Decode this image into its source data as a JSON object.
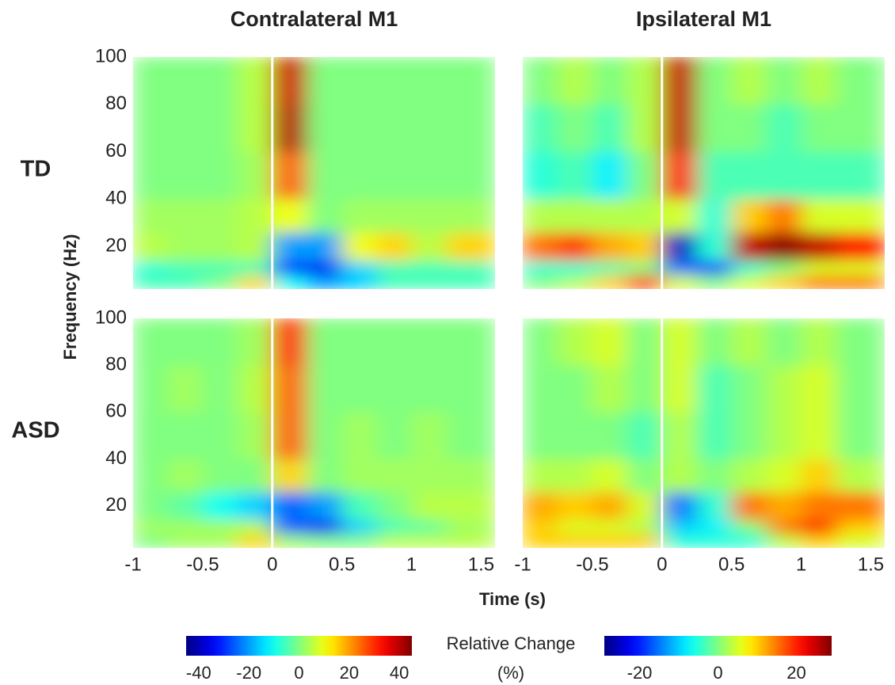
{
  "figure": {
    "xlabel": "Time (s)",
    "ylabel": "Frequency (Hz)",
    "colorbar_label": "Relative Change",
    "colorbar_unit": "(%)",
    "colormap": "jet",
    "colorbars": [
      {
        "clim": [
          -45,
          45
        ],
        "ticks": [
          -40,
          -20,
          0,
          20,
          40
        ]
      },
      {
        "clim": [
          -29,
          29
        ],
        "ticks": [
          -20,
          0,
          20
        ]
      }
    ]
  },
  "chart_data": [
    {
      "type": "heatmap",
      "title": "Contralateral M1",
      "row_label": "TD",
      "colorbar": 0,
      "xlim": [
        -1,
        1.6
      ],
      "ylim": [
        2,
        100
      ],
      "yticks": [
        20,
        40,
        60,
        80,
        100
      ],
      "event_x": 0,
      "x_edges": [
        -1,
        -0.75,
        -0.5,
        -0.25,
        0,
        0.25,
        0.5,
        0.75,
        1,
        1.25,
        1.6
      ],
      "y_edges": [
        2,
        8,
        14,
        26,
        40,
        60,
        80,
        100
      ],
      "values": [
        [
          -5,
          -5,
          0,
          15,
          -10,
          -20,
          -15,
          -5,
          -5,
          -5
        ],
        [
          -8,
          -5,
          -5,
          -5,
          -30,
          -35,
          -15,
          -5,
          -5,
          -5
        ],
        [
          5,
          3,
          3,
          5,
          -20,
          -20,
          10,
          15,
          5,
          15
        ],
        [
          3,
          3,
          3,
          5,
          10,
          0,
          3,
          3,
          3,
          3
        ],
        [
          0,
          0,
          0,
          3,
          25,
          0,
          0,
          0,
          0,
          0
        ],
        [
          0,
          0,
          0,
          5,
          40,
          0,
          0,
          0,
          0,
          0
        ],
        [
          0,
          0,
          0,
          5,
          38,
          0,
          0,
          0,
          0,
          0
        ]
      ]
    },
    {
      "type": "heatmap",
      "title": "Ipsilateral M1",
      "colorbar": 1,
      "xlim": [
        -1,
        1.6
      ],
      "ylim": [
        2,
        100
      ],
      "event_x": 0,
      "x_edges": [
        -1,
        -0.75,
        -0.5,
        -0.25,
        0,
        0.25,
        0.5,
        0.75,
        1,
        1.25,
        1.6
      ],
      "y_edges": [
        2,
        8,
        14,
        26,
        40,
        60,
        80,
        100
      ],
      "values": [
        [
          0,
          3,
          10,
          20,
          5,
          0,
          5,
          10,
          15,
          15
        ],
        [
          -5,
          -5,
          -3,
          0,
          -15,
          -20,
          -5,
          0,
          5,
          5
        ],
        [
          15,
          18,
          12,
          10,
          -25,
          -5,
          25,
          28,
          25,
          20
        ],
        [
          3,
          3,
          3,
          3,
          5,
          -5,
          10,
          15,
          5,
          5
        ],
        [
          -5,
          -3,
          -8,
          0,
          20,
          -3,
          -3,
          -3,
          -3,
          -3
        ],
        [
          -3,
          0,
          -3,
          3,
          25,
          0,
          0,
          -3,
          0,
          0
        ],
        [
          0,
          3,
          0,
          3,
          25,
          0,
          3,
          0,
          3,
          0
        ]
      ]
    },
    {
      "type": "heatmap",
      "row_label": "ASD",
      "colorbar": 0,
      "xlim": [
        -1,
        1.6
      ],
      "ylim": [
        2,
        100
      ],
      "xticks": [
        -1,
        -0.5,
        0,
        0.5,
        1,
        1.5
      ],
      "yticks": [
        20,
        40,
        60,
        80,
        100
      ],
      "event_x": 0,
      "x_edges": [
        -1,
        -0.75,
        -0.5,
        -0.25,
        0,
        0.25,
        0.5,
        0.75,
        1,
        1.25,
        1.6
      ],
      "y_edges": [
        2,
        8,
        14,
        26,
        40,
        60,
        80,
        100
      ],
      "values": [
        [
          0,
          3,
          3,
          15,
          3,
          0,
          0,
          5,
          5,
          5
        ],
        [
          3,
          3,
          3,
          5,
          -25,
          -35,
          -15,
          -5,
          -3,
          3
        ],
        [
          0,
          -3,
          -10,
          -15,
          -25,
          -20,
          -5,
          0,
          5,
          5
        ],
        [
          0,
          3,
          0,
          0,
          15,
          0,
          3,
          3,
          3,
          3
        ],
        [
          0,
          0,
          0,
          3,
          25,
          0,
          3,
          0,
          3,
          0
        ],
        [
          0,
          3,
          0,
          5,
          25,
          0,
          0,
          0,
          0,
          0
        ],
        [
          0,
          0,
          0,
          3,
          30,
          0,
          0,
          0,
          0,
          0
        ]
      ]
    },
    {
      "type": "heatmap",
      "colorbar": 1,
      "xlim": [
        -1,
        1.6
      ],
      "ylim": [
        2,
        100
      ],
      "xticks": [
        -1,
        -0.5,
        0,
        0.5,
        1,
        1.5
      ],
      "event_x": 0,
      "x_edges": [
        -1,
        -0.75,
        -0.5,
        -0.25,
        0,
        0.25,
        0.5,
        0.75,
        1,
        1.25,
        1.6
      ],
      "y_edges": [
        2,
        8,
        14,
        26,
        40,
        60,
        80,
        100
      ],
      "values": [
        [
          10,
          10,
          10,
          10,
          -5,
          -5,
          -5,
          3,
          10,
          5
        ],
        [
          10,
          5,
          5,
          3,
          -10,
          -8,
          0,
          15,
          22,
          10
        ],
        [
          12,
          10,
          12,
          5,
          -15,
          -5,
          15,
          12,
          15,
          15
        ],
        [
          3,
          3,
          5,
          0,
          3,
          0,
          3,
          5,
          10,
          3
        ],
        [
          0,
          0,
          0,
          -3,
          3,
          -3,
          0,
          3,
          5,
          0
        ],
        [
          0,
          0,
          3,
          0,
          5,
          -3,
          0,
          3,
          5,
          0
        ],
        [
          0,
          3,
          5,
          0,
          5,
          0,
          3,
          0,
          3,
          0
        ]
      ]
    }
  ]
}
